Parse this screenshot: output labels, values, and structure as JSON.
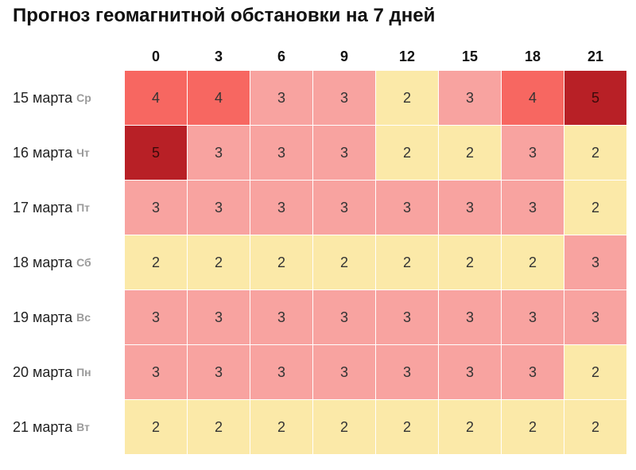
{
  "chart_data": {
    "type": "heatmap",
    "title": "Прогноз геомагнитной обстановки на 7 дней",
    "x": [
      "0",
      "3",
      "6",
      "9",
      "12",
      "15",
      "18",
      "21"
    ],
    "rows": [
      {
        "date": "15 марта",
        "day": "Ср",
        "values": [
          4,
          4,
          3,
          3,
          2,
          3,
          4,
          5
        ]
      },
      {
        "date": "16 марта",
        "day": "Чт",
        "values": [
          5,
          3,
          3,
          3,
          2,
          2,
          3,
          2
        ]
      },
      {
        "date": "17 марта",
        "day": "Пт",
        "values": [
          3,
          3,
          3,
          3,
          3,
          3,
          3,
          2
        ]
      },
      {
        "date": "18 марта",
        "day": "Сб",
        "values": [
          2,
          2,
          2,
          2,
          2,
          2,
          2,
          3
        ]
      },
      {
        "date": "19 марта",
        "day": "Вс",
        "values": [
          3,
          3,
          3,
          3,
          3,
          3,
          3,
          3
        ]
      },
      {
        "date": "20 марта",
        "day": "Пн",
        "values": [
          3,
          3,
          3,
          3,
          3,
          3,
          3,
          2
        ]
      },
      {
        "date": "21 марта",
        "day": "Вт",
        "values": [
          2,
          2,
          2,
          2,
          2,
          2,
          2,
          2
        ]
      }
    ],
    "colors": {
      "2": "#fbe9a8",
      "3": "#f8a3a0",
      "4": "#f76761",
      "5": "#b82026"
    }
  }
}
